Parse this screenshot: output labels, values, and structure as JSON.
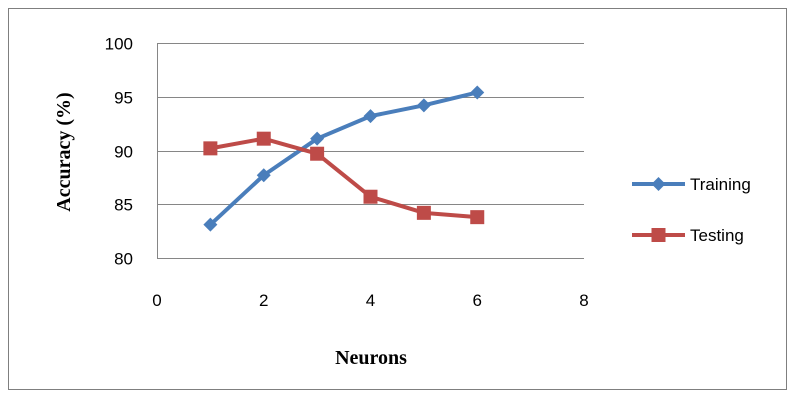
{
  "chart_data": {
    "type": "line",
    "title": "",
    "xlabel": "Neurons",
    "ylabel": "Accuracy (%)",
    "xlim": [
      0,
      8
    ],
    "ylim": [
      80,
      100
    ],
    "x_ticks": [
      "0",
      "2",
      "4",
      "6",
      "8"
    ],
    "y_ticks": [
      "80",
      "85",
      "90",
      "95",
      "100"
    ],
    "grid": "horizontal",
    "legend_position": "right",
    "x": [
      1,
      2,
      3,
      4,
      5,
      6
    ],
    "series": [
      {
        "name": "Training",
        "values": [
          83.1,
          87.7,
          91.1,
          93.2,
          94.2,
          95.4
        ],
        "color": "#4a7ebb",
        "marker": "diamond"
      },
      {
        "name": "Testing",
        "values": [
          90.2,
          91.1,
          89.7,
          85.7,
          84.2,
          83.8
        ],
        "color": "#be4b48",
        "marker": "square"
      }
    ]
  }
}
